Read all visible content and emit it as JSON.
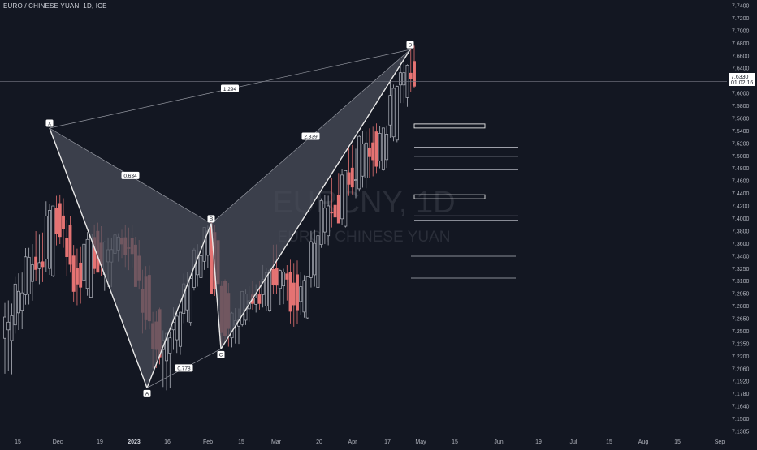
{
  "header": {
    "symbol_title": "EURO / CHINESE YUAN, 1D, ICE"
  },
  "watermark": {
    "ticker": "EURCNY, 1D",
    "description": "EURO / CHINESE YUAN"
  },
  "price_scale": {
    "ticks": [
      "7.7400",
      "7.7200",
      "7.7000",
      "7.6800",
      "7.6600",
      "7.6400",
      "7.6200",
      "7.6000",
      "7.5800",
      "7.5600",
      "7.5400",
      "7.5200",
      "7.5000",
      "7.4800",
      "7.4600",
      "7.4400",
      "7.4200",
      "7.4000",
      "7.3800",
      "7.3600",
      "7.3400",
      "7.3250",
      "7.3100",
      "7.2950",
      "7.2800",
      "7.2650",
      "7.2500",
      "7.2350",
      "7.2200",
      "7.2060",
      "7.1920",
      "7.1780",
      "7.1640",
      "7.1500",
      "7.1385"
    ],
    "last_price_label": "7.6330",
    "countdown_label": "01:02:16"
  },
  "time_scale": {
    "labels": [
      "15",
      "Dec",
      "19",
      "2023",
      "16",
      "Feb",
      "15",
      "Mar",
      "20",
      "Apr",
      "17",
      "May",
      "15",
      "Jun",
      "19",
      "Jul",
      "15",
      "Aug",
      "15",
      "Sep"
    ]
  },
  "pattern": {
    "point_labels": [
      "X",
      "A",
      "B",
      "C",
      "D"
    ],
    "ratio_xa_xb": "0.634",
    "ratio_ac": "0.778",
    "ratio_bd": "2.339",
    "ratio_xd": "1.294"
  },
  "colors": {
    "background": "#131722",
    "up_candle": "#b2b5be",
    "down_candle": "#e57373",
    "pattern_fill": "#4a4e5a",
    "pattern_line": "#e8e8e8",
    "axis_text": "#b2b5be"
  },
  "chart_data": {
    "type": "candlestick",
    "title": "EURO / CHINESE YUAN, 1D, ICE",
    "xlabel": "",
    "ylabel": "",
    "ylim": [
      7.1385,
      7.74
    ],
    "last_price": 7.633,
    "harmonic_points": {
      "X": 7.567,
      "A": 7.2,
      "B": 7.432,
      "C": 7.255,
      "D": 7.678
    },
    "horizontal_levels": [
      7.57,
      7.47,
      7.54,
      7.527,
      7.508,
      7.443,
      7.437,
      7.386,
      7.355
    ],
    "series_sample": [
      {
        "o": 7.27,
        "h": 7.32,
        "l": 7.22,
        "c": 7.3
      },
      {
        "o": 7.3,
        "h": 7.36,
        "l": 7.28,
        "c": 7.34
      },
      {
        "o": 7.34,
        "h": 7.4,
        "l": 7.32,
        "c": 7.38
      },
      {
        "o": 7.38,
        "h": 7.42,
        "l": 7.35,
        "c": 7.37
      },
      {
        "o": 7.37,
        "h": 7.46,
        "l": 7.36,
        "c": 7.45
      },
      {
        "o": 7.45,
        "h": 7.47,
        "l": 7.4,
        "c": 7.42
      },
      {
        "o": 7.42,
        "h": 7.44,
        "l": 7.36,
        "c": 7.38
      },
      {
        "o": 7.38,
        "h": 7.4,
        "l": 7.32,
        "c": 7.34
      },
      {
        "o": 7.34,
        "h": 7.42,
        "l": 7.33,
        "c": 7.41
      },
      {
        "o": 7.41,
        "h": 7.43,
        "l": 7.36,
        "c": 7.37
      },
      {
        "o": 7.37,
        "h": 7.41,
        "l": 7.34,
        "c": 7.4
      },
      {
        "o": 7.4,
        "h": 7.42,
        "l": 7.38,
        "c": 7.41
      },
      {
        "o": 7.41,
        "h": 7.43,
        "l": 7.37,
        "c": 7.39
      },
      {
        "o": 7.39,
        "h": 7.41,
        "l": 7.34,
        "c": 7.35
      },
      {
        "o": 7.35,
        "h": 7.37,
        "l": 7.28,
        "c": 7.3
      },
      {
        "o": 7.3,
        "h": 7.31,
        "l": 7.23,
        "c": 7.25
      },
      {
        "o": 7.25,
        "h": 7.28,
        "l": 7.2,
        "c": 7.27
      },
      {
        "o": 7.27,
        "h": 7.31,
        "l": 7.25,
        "c": 7.3
      },
      {
        "o": 7.3,
        "h": 7.36,
        "l": 7.29,
        "c": 7.35
      },
      {
        "o": 7.35,
        "h": 7.4,
        "l": 7.34,
        "c": 7.39
      },
      {
        "o": 7.39,
        "h": 7.43,
        "l": 7.37,
        "c": 7.42
      },
      {
        "o": 7.42,
        "h": 7.43,
        "l": 7.33,
        "c": 7.34
      },
      {
        "o": 7.34,
        "h": 7.35,
        "l": 7.26,
        "c": 7.28
      },
      {
        "o": 7.28,
        "h": 7.31,
        "l": 7.26,
        "c": 7.3
      },
      {
        "o": 7.3,
        "h": 7.34,
        "l": 7.29,
        "c": 7.33
      },
      {
        "o": 7.33,
        "h": 7.35,
        "l": 7.31,
        "c": 7.32
      },
      {
        "o": 7.32,
        "h": 7.37,
        "l": 7.31,
        "c": 7.36
      },
      {
        "o": 7.36,
        "h": 7.4,
        "l": 7.33,
        "c": 7.35
      },
      {
        "o": 7.35,
        "h": 7.37,
        "l": 7.32,
        "c": 7.36
      },
      {
        "o": 7.36,
        "h": 7.38,
        "l": 7.29,
        "c": 7.31
      },
      {
        "o": 7.31,
        "h": 7.36,
        "l": 7.3,
        "c": 7.35
      },
      {
        "o": 7.35,
        "h": 7.42,
        "l": 7.34,
        "c": 7.41
      },
      {
        "o": 7.41,
        "h": 7.47,
        "l": 7.4,
        "c": 7.46
      },
      {
        "o": 7.46,
        "h": 7.5,
        "l": 7.43,
        "c": 7.44
      },
      {
        "o": 7.44,
        "h": 7.51,
        "l": 7.43,
        "c": 7.5
      },
      {
        "o": 7.5,
        "h": 7.54,
        "l": 7.47,
        "c": 7.49
      },
      {
        "o": 7.49,
        "h": 7.56,
        "l": 7.48,
        "c": 7.55
      },
      {
        "o": 7.55,
        "h": 7.57,
        "l": 7.5,
        "c": 7.52
      },
      {
        "o": 7.52,
        "h": 7.57,
        "l": 7.51,
        "c": 7.56
      },
      {
        "o": 7.56,
        "h": 7.63,
        "l": 7.55,
        "c": 7.62
      },
      {
        "o": 7.62,
        "h": 7.66,
        "l": 7.6,
        "c": 7.65
      },
      {
        "o": 7.65,
        "h": 7.68,
        "l": 7.62,
        "c": 7.633
      }
    ]
  }
}
